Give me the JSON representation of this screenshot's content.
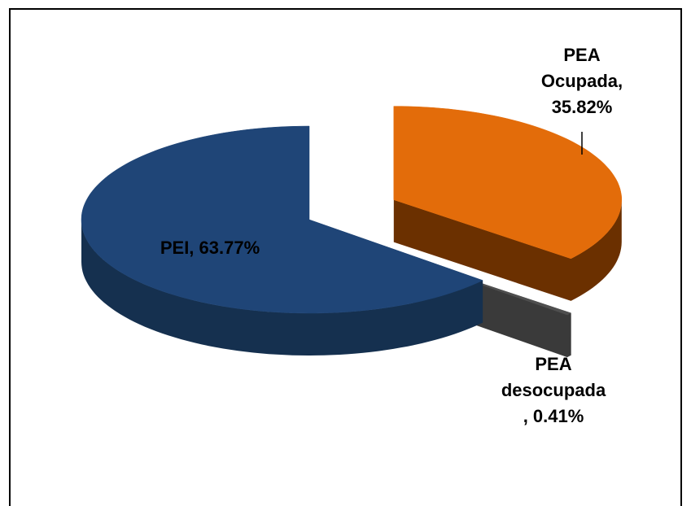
{
  "chart_data": {
    "type": "pie",
    "values": [
      35.82,
      0.41,
      63.77
    ],
    "value_labels": [
      "PEA\nOcupada,\n35.82%",
      "PEA\ndesocupada\n, 0.41%",
      "PEI, 63.77%"
    ],
    "colors": [
      "#e36c0a",
      "#4f4f4f",
      "#1f4577"
    ],
    "side_colors": [
      "#6b3000",
      "#3a3a3a",
      "#15304f"
    ]
  }
}
